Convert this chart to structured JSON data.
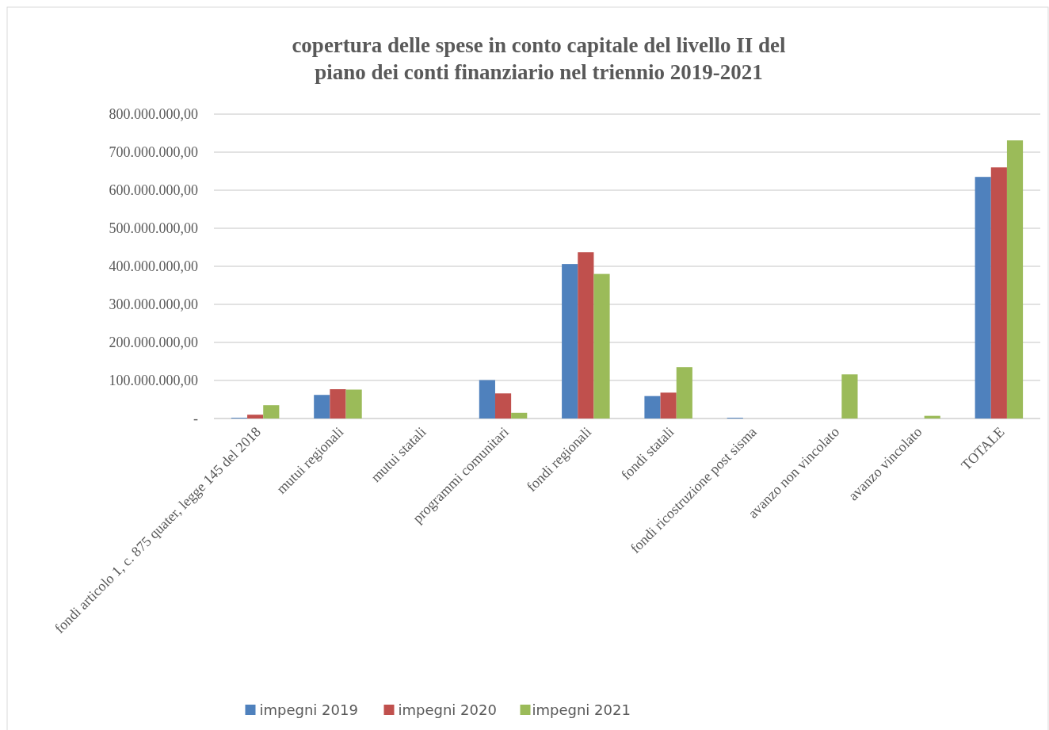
{
  "chart_data": {
    "type": "bar",
    "title": "copertura delle spese in conto capitale del livello II del piano dei conti finanziario nel triennio 2019-2021",
    "categories": [
      "fondi articolo 1, c. 875 quater, legge 145 del 2018",
      "mutui regionali",
      "mutui statali",
      "programmi comunitari",
      "fondi regionali",
      "fondi statali",
      "fondi ricostruzione post sisma",
      "avanzo non vincolato",
      "avanzo vincolato",
      "TOTALE"
    ],
    "series": [
      {
        "name": "impegni 2019",
        "color": "#4f81bd",
        "values": [
          2000000,
          62000000,
          null,
          101000000,
          406000000,
          59000000,
          2000000,
          null,
          null,
          635000000
        ]
      },
      {
        "name": "impegni 2020",
        "color": "#c0504d",
        "values": [
          10000000,
          77000000,
          null,
          66000000,
          437000000,
          68000000,
          null,
          null,
          null,
          660000000
        ]
      },
      {
        "name": "impegni 2021",
        "color": "#9bbb59",
        "values": [
          35000000,
          76000000,
          null,
          15000000,
          380000000,
          135000000,
          null,
          116000000,
          7000000,
          731000000
        ]
      }
    ],
    "ylim": [
      0,
      800000000
    ],
    "yticks": [
      {
        "value": 0,
        "label": "-"
      },
      {
        "value": 100000000,
        "label": "100.000.000,00"
      },
      {
        "value": 200000000,
        "label": "200.000.000,00"
      },
      {
        "value": 300000000,
        "label": "300.000.000,00"
      },
      {
        "value": 400000000,
        "label": "400.000.000,00"
      },
      {
        "value": 500000000,
        "label": "500.000.000,00"
      },
      {
        "value": 600000000,
        "label": "600.000.000,00"
      },
      {
        "value": 700000000,
        "label": "700.000.000,00"
      },
      {
        "value": 800000000,
        "label": "800.000.000,00"
      }
    ],
    "grid": "y",
    "legend": "bottom"
  }
}
